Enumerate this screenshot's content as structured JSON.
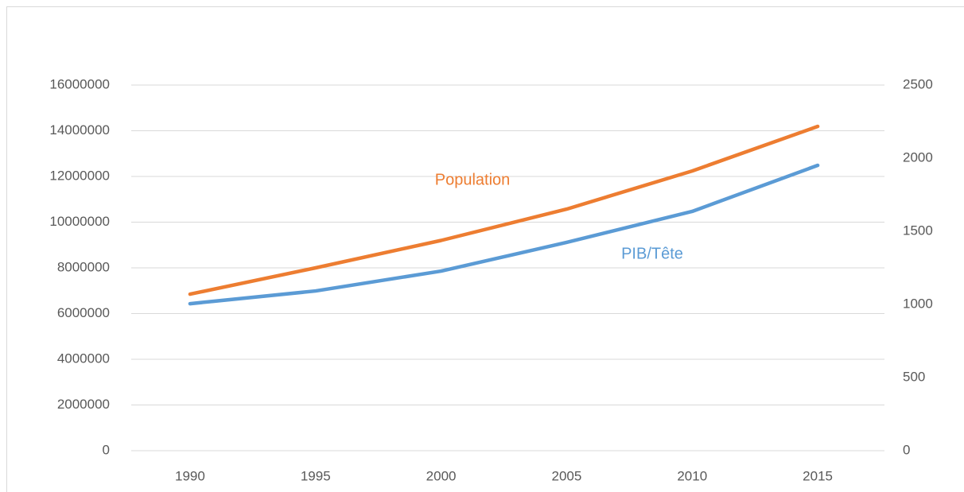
{
  "chart_data": {
    "type": "line",
    "categories": [
      "1990",
      "1995",
      "2000",
      "2005",
      "2010",
      "2015"
    ],
    "series": [
      {
        "name": "Population",
        "color": "#ed7d31",
        "values": [
          6850000,
          8000000,
          9200000,
          10570000,
          12240000,
          14190000
        ]
      },
      {
        "name": "PIB/Tête",
        "color": "#5b9bd5",
        "axis": "y2",
        "values": [
          1005,
          1092,
          1228,
          1424,
          1636,
          1951
        ]
      }
    ],
    "ylim": [
      0,
      16000000
    ],
    "yticks": [
      0,
      2000000,
      4000000,
      6000000,
      8000000,
      10000000,
      12000000,
      14000000,
      16000000
    ],
    "y2lim": [
      0,
      2500
    ],
    "y2ticks": [
      0,
      500,
      1000,
      1500,
      2000,
      2500
    ],
    "grid": true
  }
}
